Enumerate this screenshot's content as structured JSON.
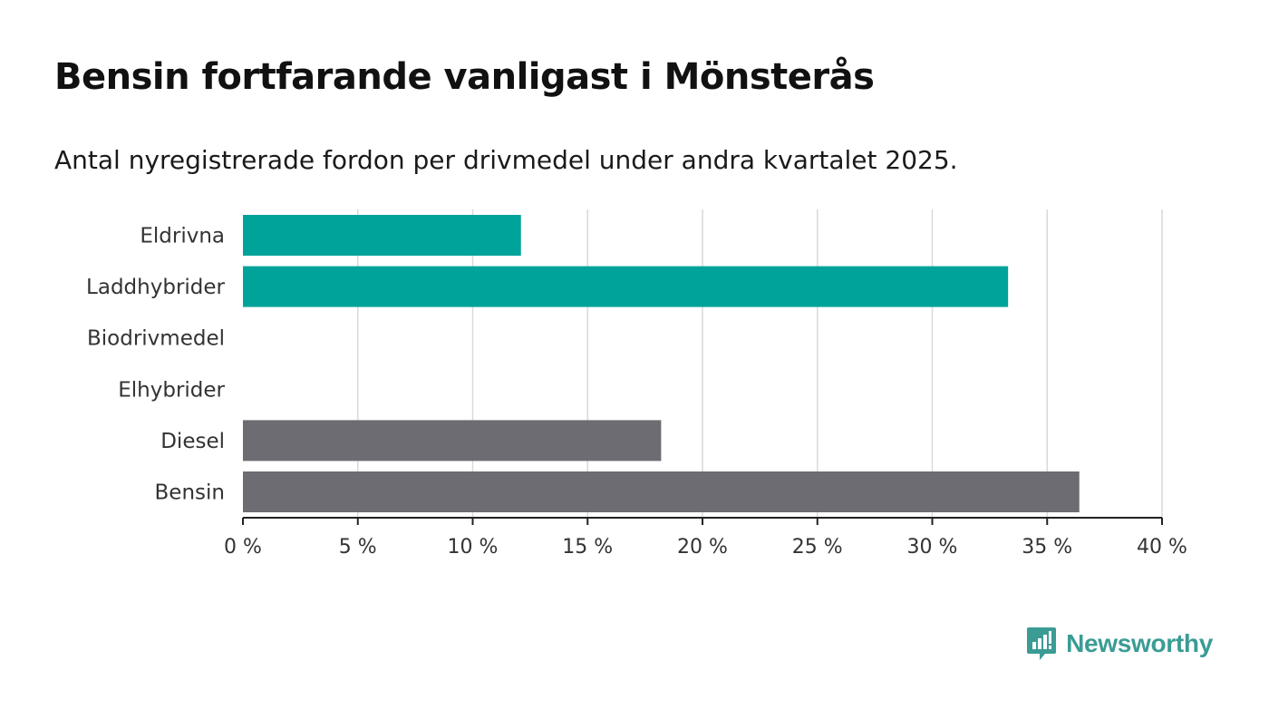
{
  "title": "Bensin fortfarande vanligast i Mönsterås",
  "subtitle": "Antal nyregistrerade fordon per drivmedel under andra kvartalet 2025.",
  "logo": {
    "text": "Newsworthy",
    "icon": "newsworthy-logo-icon",
    "color": "#3a9c94"
  },
  "colors": {
    "electric": "#00a39a",
    "fossil": "#6d6c72",
    "grid": "#d9d9d9",
    "axis": "#222222"
  },
  "chart_data": {
    "type": "bar",
    "orientation": "horizontal",
    "title": "Bensin fortfarande vanligast i Mönsterås",
    "subtitle": "Antal nyregistrerade fordon per drivmedel under andra kvartalet 2025.",
    "categories": [
      "Eldrivna",
      "Laddhybrider",
      "Biodrivmedel",
      "Elhybrider",
      "Diesel",
      "Bensin"
    ],
    "values": [
      12.1,
      33.3,
      0,
      0,
      18.2,
      36.4
    ],
    "bar_colors": [
      "#00a39a",
      "#00a39a",
      "#00a39a",
      "#00a39a",
      "#6d6c72",
      "#6d6c72"
    ],
    "xlim": [
      0,
      40
    ],
    "xticks": [
      0,
      5,
      10,
      15,
      20,
      25,
      30,
      35,
      40
    ],
    "tick_labels": [
      "0 %",
      "5 %",
      "10 %",
      "15 %",
      "20 %",
      "25 %",
      "30 %",
      "35 %",
      "40 %"
    ],
    "xlabel": "",
    "ylabel": "",
    "grid": "vertical",
    "legend": "none"
  }
}
